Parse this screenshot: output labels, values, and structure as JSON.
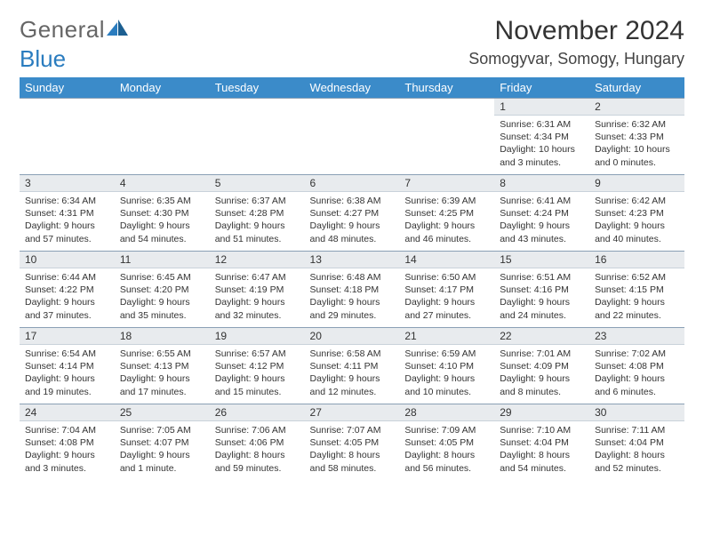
{
  "brand": {
    "part1": "General",
    "part2": "Blue"
  },
  "title": "November 2024",
  "location": "Somogyvar, Somogy, Hungary",
  "colors": {
    "header_bg": "#3b8bc9",
    "header_text": "#ffffff",
    "daynum_bg": "#e8ebee",
    "border": "#8aa0b5",
    "brand_gray": "#666666",
    "brand_blue": "#2a7cbf",
    "text": "#333333",
    "background": "#ffffff"
  },
  "day_headers": [
    "Sunday",
    "Monday",
    "Tuesday",
    "Wednesday",
    "Thursday",
    "Friday",
    "Saturday"
  ],
  "weeks": [
    [
      null,
      null,
      null,
      null,
      null,
      {
        "n": "1",
        "sunrise": "6:31 AM",
        "sunset": "4:34 PM",
        "daylight": "10 hours and 3 minutes."
      },
      {
        "n": "2",
        "sunrise": "6:32 AM",
        "sunset": "4:33 PM",
        "daylight": "10 hours and 0 minutes."
      }
    ],
    [
      {
        "n": "3",
        "sunrise": "6:34 AM",
        "sunset": "4:31 PM",
        "daylight": "9 hours and 57 minutes."
      },
      {
        "n": "4",
        "sunrise": "6:35 AM",
        "sunset": "4:30 PM",
        "daylight": "9 hours and 54 minutes."
      },
      {
        "n": "5",
        "sunrise": "6:37 AM",
        "sunset": "4:28 PM",
        "daylight": "9 hours and 51 minutes."
      },
      {
        "n": "6",
        "sunrise": "6:38 AM",
        "sunset": "4:27 PM",
        "daylight": "9 hours and 48 minutes."
      },
      {
        "n": "7",
        "sunrise": "6:39 AM",
        "sunset": "4:25 PM",
        "daylight": "9 hours and 46 minutes."
      },
      {
        "n": "8",
        "sunrise": "6:41 AM",
        "sunset": "4:24 PM",
        "daylight": "9 hours and 43 minutes."
      },
      {
        "n": "9",
        "sunrise": "6:42 AM",
        "sunset": "4:23 PM",
        "daylight": "9 hours and 40 minutes."
      }
    ],
    [
      {
        "n": "10",
        "sunrise": "6:44 AM",
        "sunset": "4:22 PM",
        "daylight": "9 hours and 37 minutes."
      },
      {
        "n": "11",
        "sunrise": "6:45 AM",
        "sunset": "4:20 PM",
        "daylight": "9 hours and 35 minutes."
      },
      {
        "n": "12",
        "sunrise": "6:47 AM",
        "sunset": "4:19 PM",
        "daylight": "9 hours and 32 minutes."
      },
      {
        "n": "13",
        "sunrise": "6:48 AM",
        "sunset": "4:18 PM",
        "daylight": "9 hours and 29 minutes."
      },
      {
        "n": "14",
        "sunrise": "6:50 AM",
        "sunset": "4:17 PM",
        "daylight": "9 hours and 27 minutes."
      },
      {
        "n": "15",
        "sunrise": "6:51 AM",
        "sunset": "4:16 PM",
        "daylight": "9 hours and 24 minutes."
      },
      {
        "n": "16",
        "sunrise": "6:52 AM",
        "sunset": "4:15 PM",
        "daylight": "9 hours and 22 minutes."
      }
    ],
    [
      {
        "n": "17",
        "sunrise": "6:54 AM",
        "sunset": "4:14 PM",
        "daylight": "9 hours and 19 minutes."
      },
      {
        "n": "18",
        "sunrise": "6:55 AM",
        "sunset": "4:13 PM",
        "daylight": "9 hours and 17 minutes."
      },
      {
        "n": "19",
        "sunrise": "6:57 AM",
        "sunset": "4:12 PM",
        "daylight": "9 hours and 15 minutes."
      },
      {
        "n": "20",
        "sunrise": "6:58 AM",
        "sunset": "4:11 PM",
        "daylight": "9 hours and 12 minutes."
      },
      {
        "n": "21",
        "sunrise": "6:59 AM",
        "sunset": "4:10 PM",
        "daylight": "9 hours and 10 minutes."
      },
      {
        "n": "22",
        "sunrise": "7:01 AM",
        "sunset": "4:09 PM",
        "daylight": "9 hours and 8 minutes."
      },
      {
        "n": "23",
        "sunrise": "7:02 AM",
        "sunset": "4:08 PM",
        "daylight": "9 hours and 6 minutes."
      }
    ],
    [
      {
        "n": "24",
        "sunrise": "7:04 AM",
        "sunset": "4:08 PM",
        "daylight": "9 hours and 3 minutes."
      },
      {
        "n": "25",
        "sunrise": "7:05 AM",
        "sunset": "4:07 PM",
        "daylight": "9 hours and 1 minute."
      },
      {
        "n": "26",
        "sunrise": "7:06 AM",
        "sunset": "4:06 PM",
        "daylight": "8 hours and 59 minutes."
      },
      {
        "n": "27",
        "sunrise": "7:07 AM",
        "sunset": "4:05 PM",
        "daylight": "8 hours and 58 minutes."
      },
      {
        "n": "28",
        "sunrise": "7:09 AM",
        "sunset": "4:05 PM",
        "daylight": "8 hours and 56 minutes."
      },
      {
        "n": "29",
        "sunrise": "7:10 AM",
        "sunset": "4:04 PM",
        "daylight": "8 hours and 54 minutes."
      },
      {
        "n": "30",
        "sunrise": "7:11 AM",
        "sunset": "4:04 PM",
        "daylight": "8 hours and 52 minutes."
      }
    ]
  ],
  "labels": {
    "sunrise_prefix": "Sunrise: ",
    "sunset_prefix": "Sunset: ",
    "daylight_prefix": "Daylight: "
  }
}
